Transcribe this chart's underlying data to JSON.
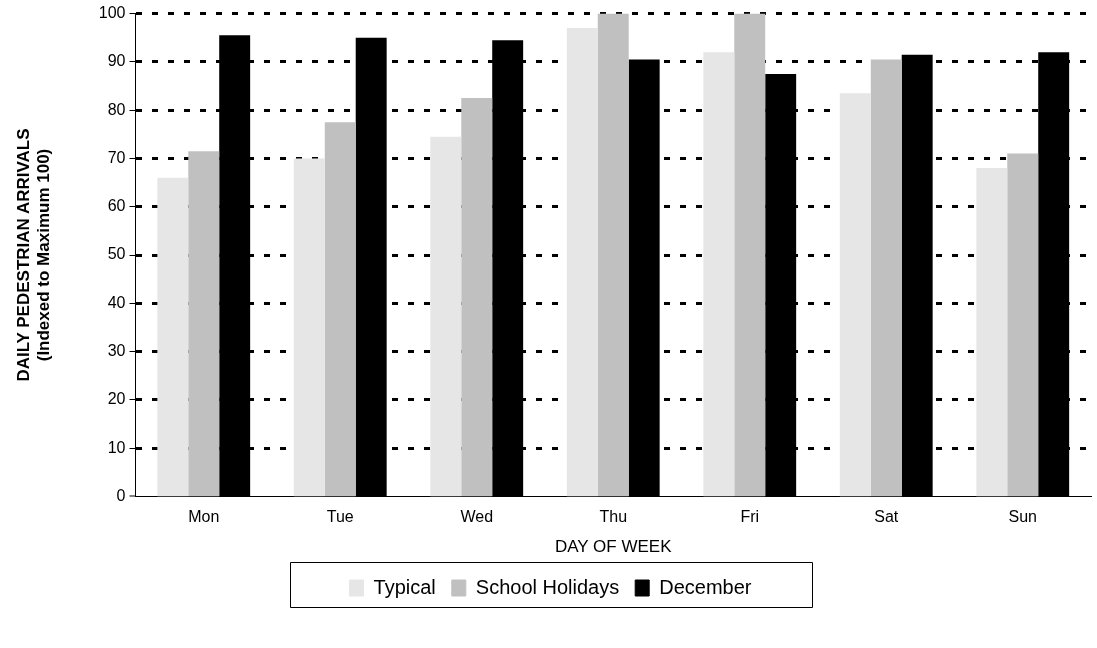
{
  "chart_data": {
    "type": "bar",
    "xlabel": "DAY OF WEEK",
    "ylabel": "DAILY PEDESTRIAN ARRIVALS\n(Indexed to Maximum 100)",
    "categories": [
      "Mon",
      "Tue",
      "Wed",
      "Thu",
      "Fri",
      "Sat",
      "Sun"
    ],
    "series": [
      {
        "name": "Typical",
        "color": "#e6e6e6",
        "values": [
          66,
          70,
          74.5,
          97,
          92,
          83.5,
          68
        ]
      },
      {
        "name": "School Holidays",
        "color": "#c0c0c0",
        "values": [
          71.5,
          77.5,
          82.5,
          100,
          100,
          90.5,
          71
        ]
      },
      {
        "name": "December",
        "color": "#000000",
        "values": [
          95.5,
          95,
          94.5,
          90.5,
          87.5,
          91.5,
          92
        ]
      }
    ],
    "ylim": [
      0,
      100
    ],
    "yticks": [
      0,
      10,
      20,
      30,
      40,
      50,
      60,
      70,
      80,
      90,
      100
    ],
    "grid": "y",
    "legend": "bottom"
  }
}
